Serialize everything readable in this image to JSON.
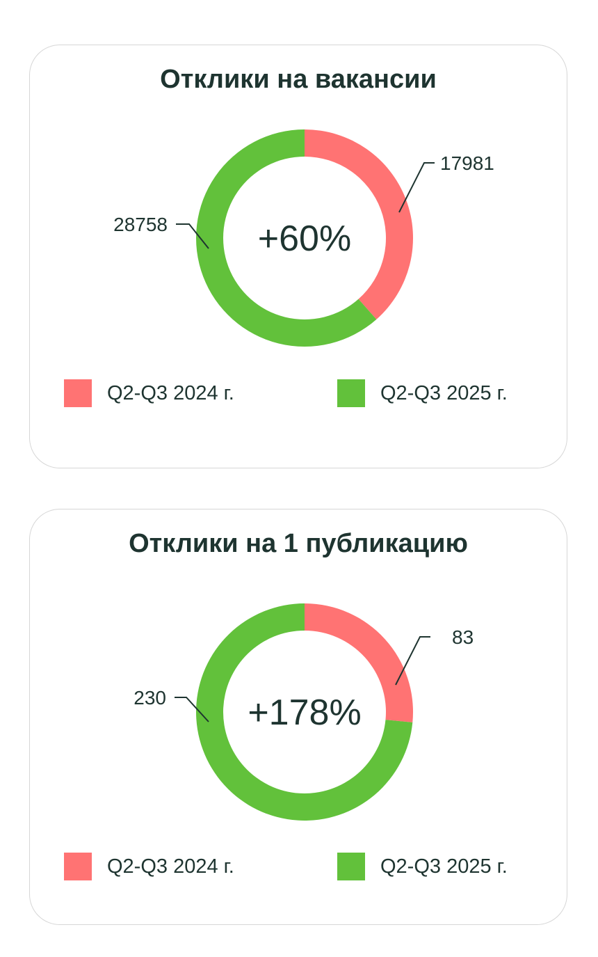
{
  "colors": {
    "series_2024": "#ff7373",
    "series_2025": "#62c13b",
    "text": "#1e3430"
  },
  "charts": [
    {
      "title": "Отклики на вакансии",
      "center": "+60%"
    },
    {
      "title": "Отклики на 1 публикацию",
      "center": "+178%"
    }
  ],
  "chart_data": [
    {
      "type": "pie",
      "title": "Отклики на вакансии",
      "categories": [
        "Q2-Q3 2024 г.",
        "Q2-Q3 2025 г."
      ],
      "values": [
        17981,
        28758
      ],
      "value_labels": [
        "17981",
        "28758"
      ],
      "annotation": "+60%",
      "legend": "bottom"
    },
    {
      "type": "pie",
      "title": "Отклики на 1 публикацию",
      "categories": [
        "Q2-Q3 2024 г.",
        "Q2-Q3 2025 г."
      ],
      "values": [
        83,
        230
      ],
      "value_labels": [
        "83",
        "230"
      ],
      "annotation": "+178%",
      "legend": "bottom"
    }
  ]
}
